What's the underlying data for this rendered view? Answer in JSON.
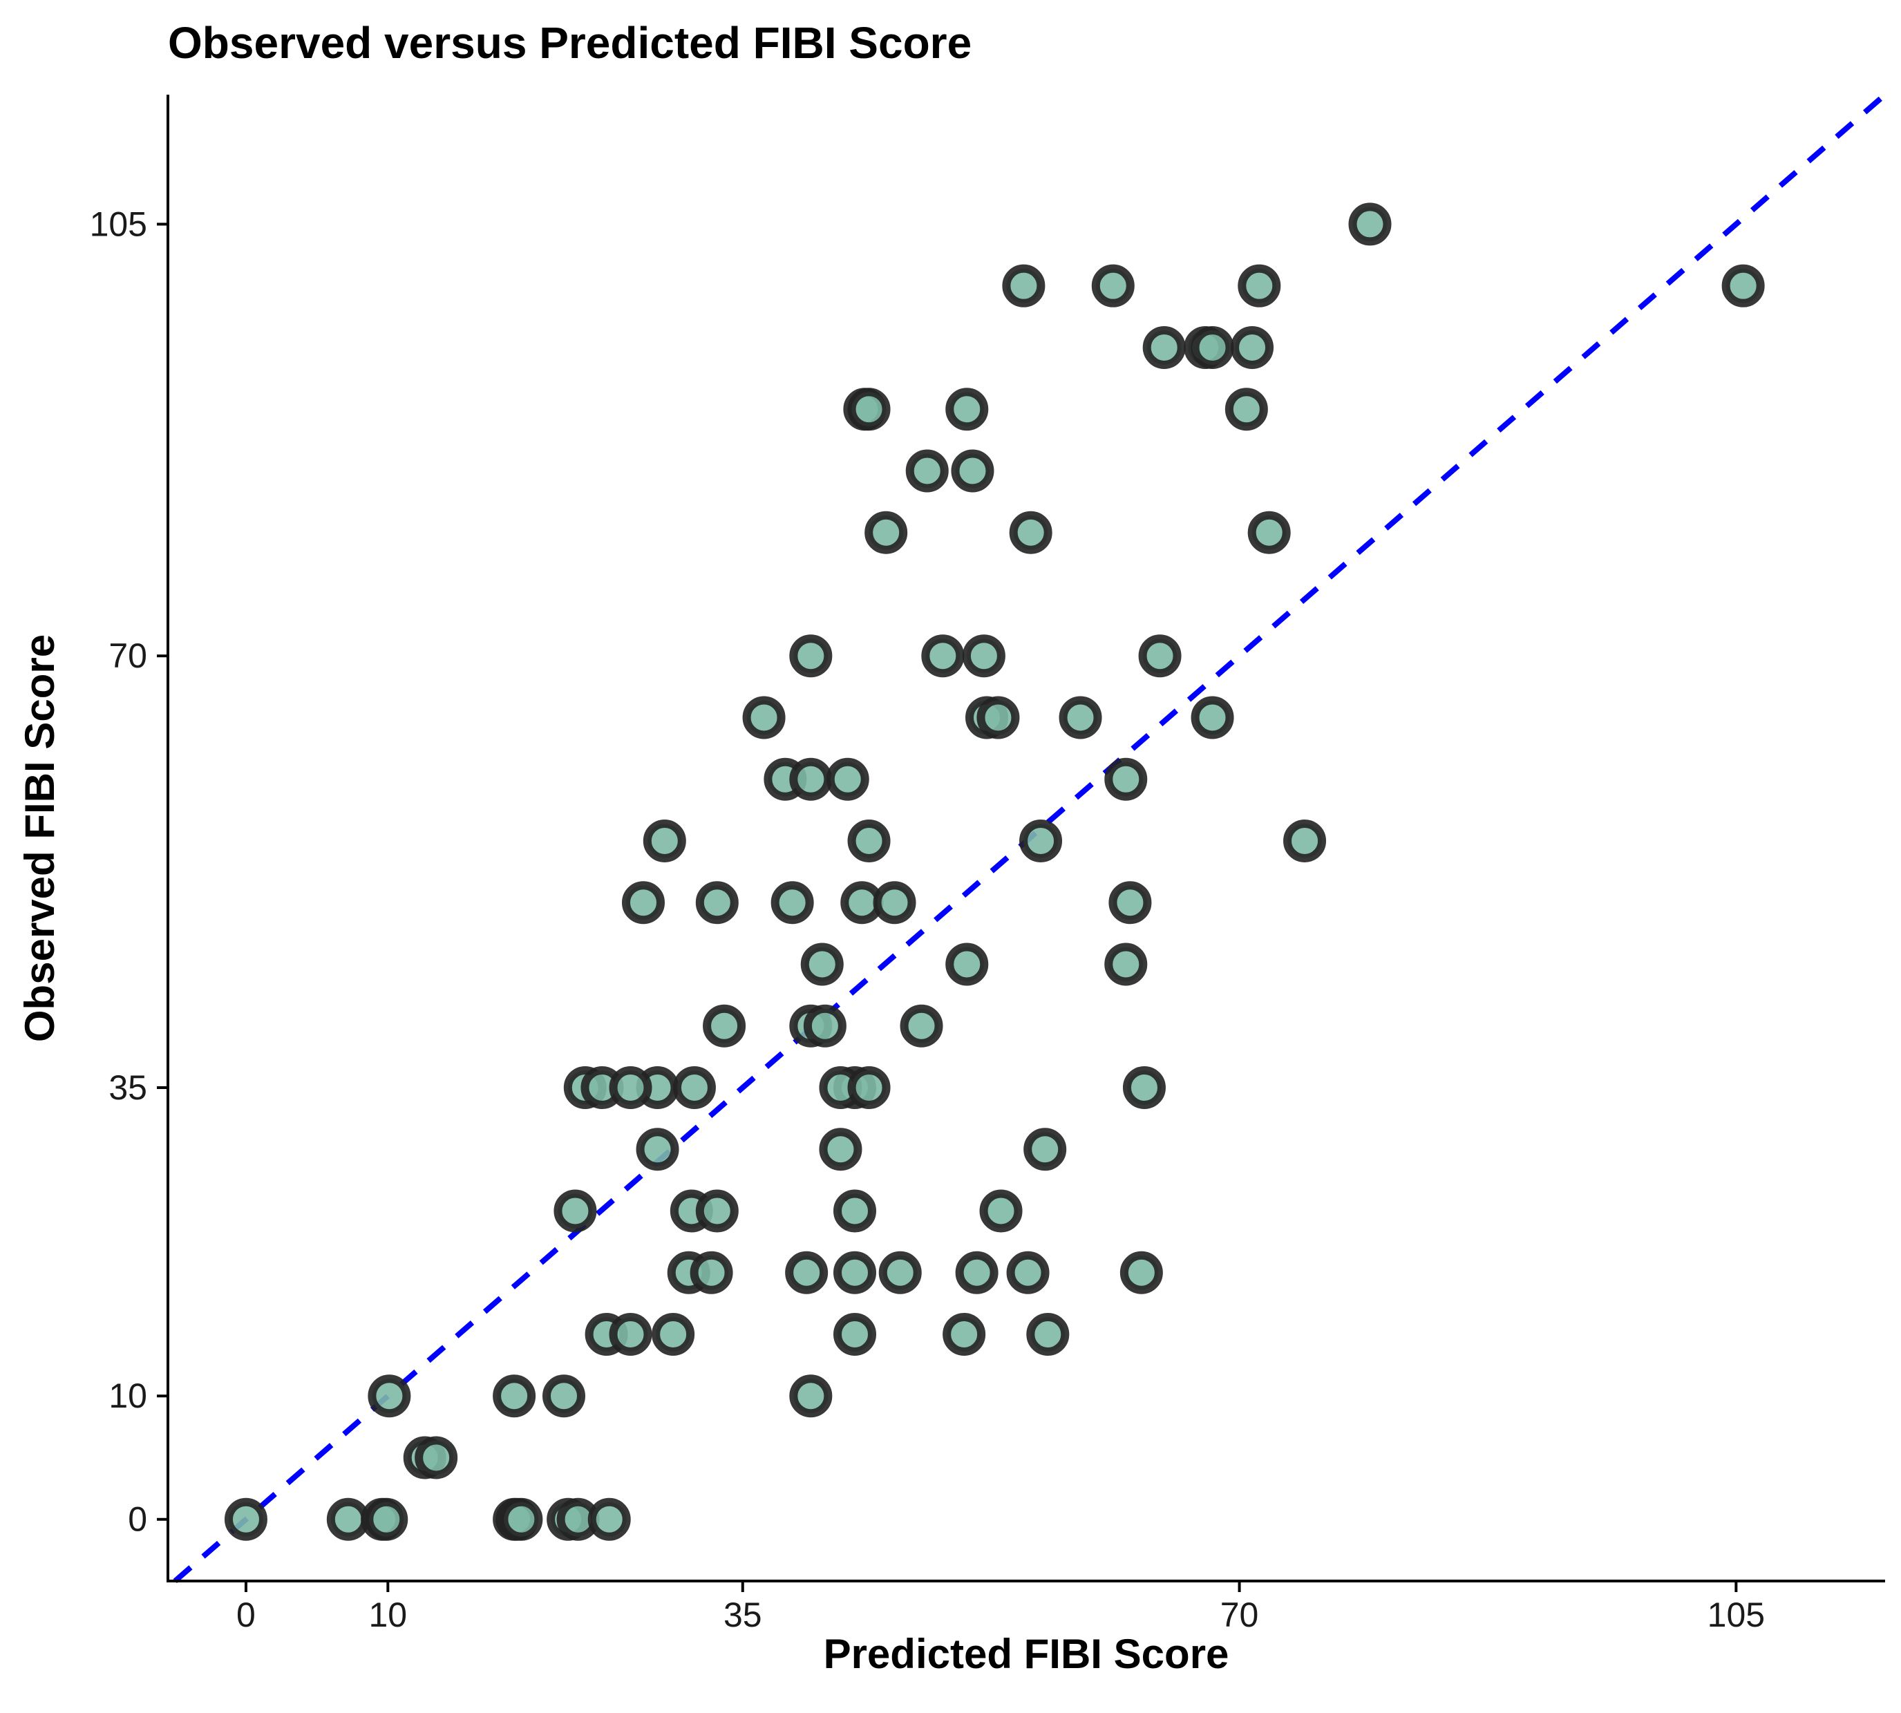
{
  "chart_data": {
    "type": "scatter",
    "title": "Observed versus Predicted FIBI Score",
    "xlabel": "Predicted FIBI Score",
    "ylabel": "Observed FIBI Score",
    "xlim": [
      -5.5,
      115.5
    ],
    "ylim": [
      -5,
      115.5
    ],
    "xticks": [
      0,
      10,
      35,
      70,
      105
    ],
    "yticks": [
      0,
      10,
      35,
      70,
      105
    ],
    "grid": false,
    "reference_line": {
      "style": "dashed",
      "slope": 1,
      "intercept": 0,
      "color": "#0000ff"
    },
    "point_fill": "#7fb9a5",
    "point_stroke": "#222222",
    "x": [
      0,
      7.2,
      9.6,
      9.9,
      18.9,
      19.1,
      19.4,
      22.7,
      23.4,
      25.6,
      10.1,
      18.9,
      22.4,
      39.8,
      12.6,
      13.4,
      25.4,
      27.1,
      30.1,
      42.9,
      50.6,
      56.5,
      31.2,
      32.8,
      39.5,
      42.9,
      46.1,
      51.5,
      55.1,
      63.1,
      23.2,
      31.4,
      33.2,
      42.9,
      23.9,
      29.0,
      31.6,
      42.9,
      56.3,
      29.0,
      41.9,
      53.2,
      25.1,
      27.1,
      41.9,
      43.9,
      63.3,
      33.7,
      39.8,
      40.8,
      47.6,
      40.6,
      50.8,
      62.0,
      28.0,
      33.2,
      38.5,
      43.4,
      45.7,
      62.3,
      29.5,
      43.9,
      56.0,
      74.6,
      38.0,
      39.8,
      42.4,
      62.0,
      36.5,
      52.2,
      53.0,
      58.8,
      68.1,
      39.8,
      49.1,
      52.0,
      64.4,
      45.1,
      55.3,
      72.1,
      48.0,
      51.2,
      43.6,
      43.9,
      50.8,
      70.5,
      64.7,
      67.6,
      68.1,
      70.9,
      54.8,
      61.1,
      71.4,
      79.2,
      105.5
    ],
    "y": [
      0,
      0,
      0,
      0,
      0,
      0,
      0,
      0,
      0,
      0,
      10,
      10,
      10,
      10,
      5,
      5,
      15,
      15,
      15,
      15,
      15,
      15,
      20,
      20,
      20,
      20,
      20,
      20,
      20,
      20,
      25,
      25,
      25,
      25,
      35,
      35,
      35,
      35,
      30,
      30,
      30,
      25,
      35,
      35,
      35,
      35,
      35,
      40,
      40,
      40,
      40,
      45,
      45,
      45,
      50,
      50,
      50,
      50,
      50,
      50,
      55,
      55,
      55,
      55,
      60,
      60,
      60,
      60,
      65,
      65,
      65,
      65,
      65,
      70,
      70,
      70,
      70,
      80,
      80,
      80,
      85,
      85,
      90,
      90,
      90,
      90,
      95,
      95,
      95,
      95,
      100,
      100,
      100,
      105,
      100
    ]
  }
}
